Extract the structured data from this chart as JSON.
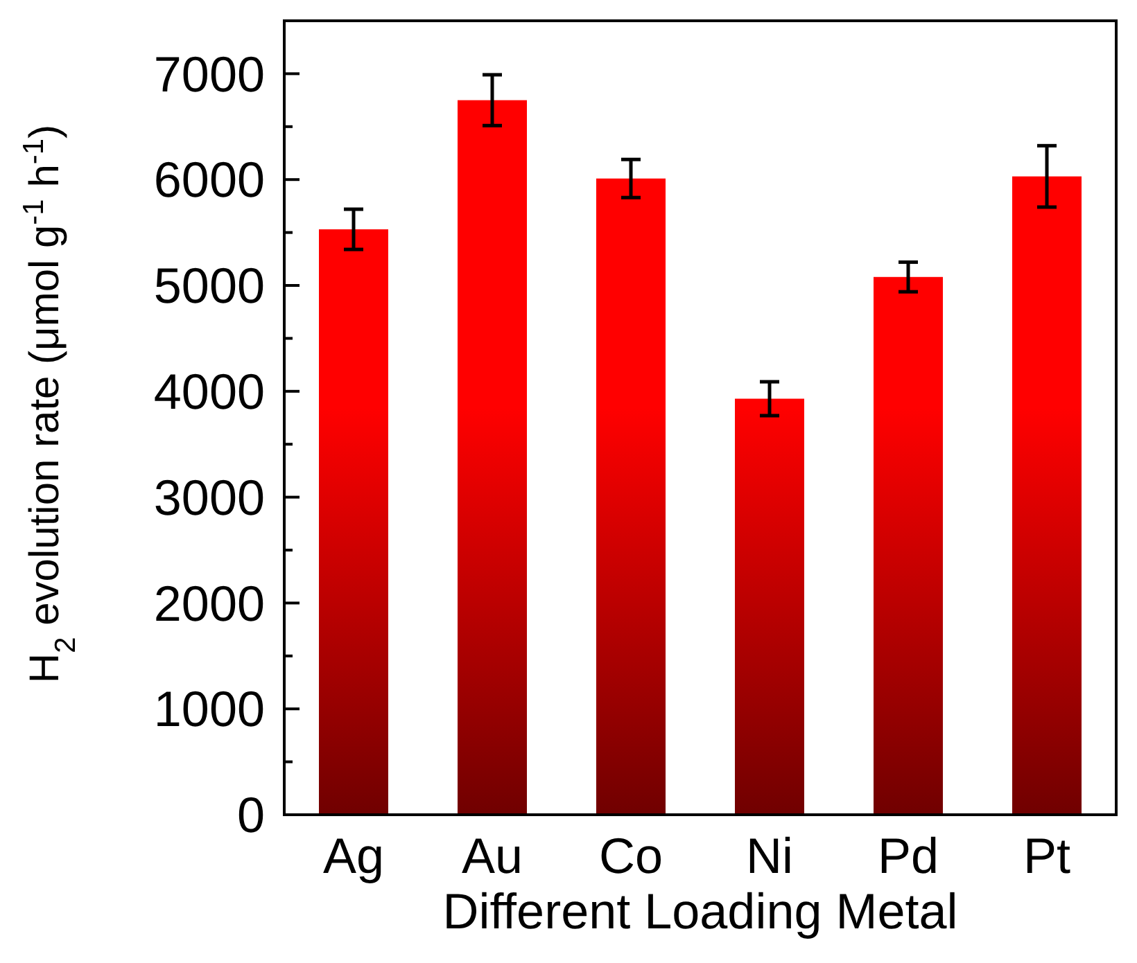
{
  "chart_data": {
    "type": "bar",
    "xlabel": "Different Loading Metal",
    "ylabel": "H$_{2}$ evolution rate (μmol g$^{-1}$ h$^{-1}$)",
    "categories": [
      "Ag",
      "Au",
      "Co",
      "Ni",
      "Pd",
      "Pt"
    ],
    "values": [
      5530,
      6750,
      6010,
      3930,
      5080,
      6030
    ],
    "errors": [
      190,
      240,
      180,
      160,
      140,
      290
    ],
    "color": "#ff0000",
    "ylim": [
      0,
      7500
    ],
    "yticks": [
      0,
      {
        "value": 500,
        "label": null
      },
      1000,
      {
        "value": 1500,
        "label": null
      },
      2000,
      {
        "value": 2500,
        "label": null
      },
      3000,
      {
        "value": 3500,
        "label": null
      },
      4000,
      {
        "value": 4500,
        "label": null
      },
      5000,
      {
        "value": 5500,
        "label": null
      },
      6000,
      {
        "value": 6500,
        "label": null
      },
      7000
    ],
    "grid": false
  }
}
